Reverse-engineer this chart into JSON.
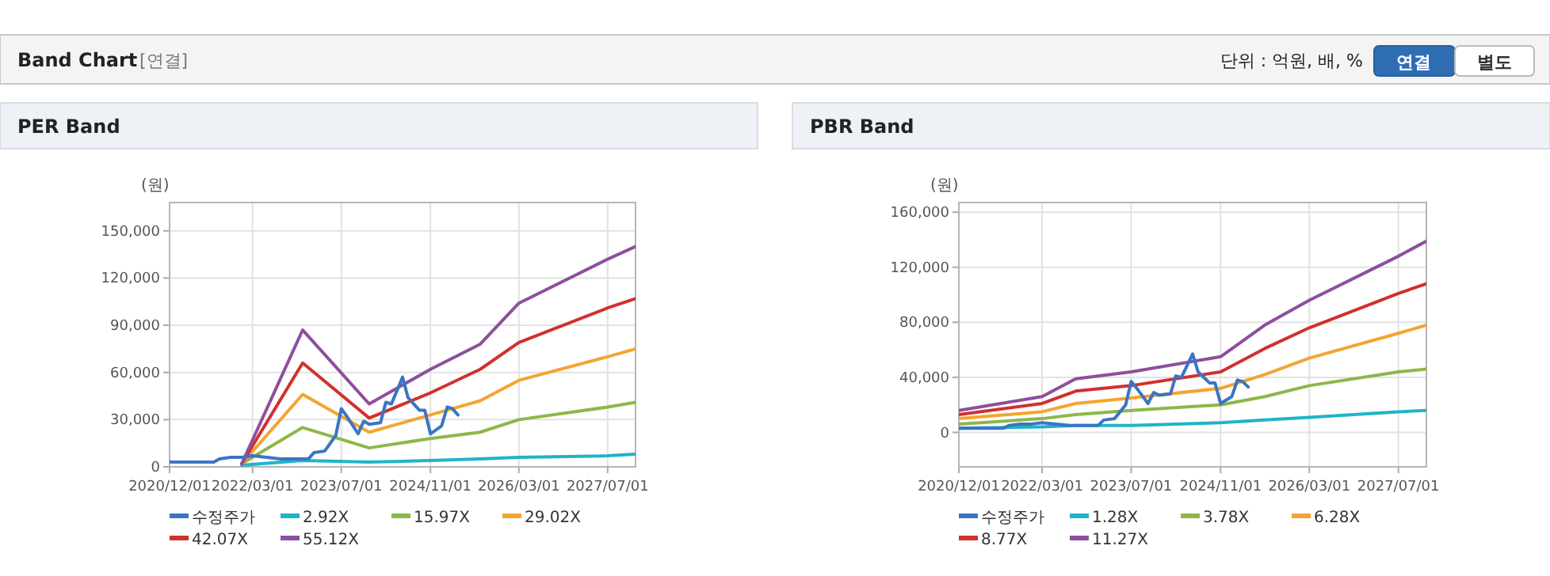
{
  "chart_data": [
    {
      "type": "line",
      "title": "PER Band",
      "ylabel": "(원)",
      "annotations": [
        "Band Chart",
        "[연결]",
        "단위 : 억원, 배, %",
        "연결",
        "별도"
      ],
      "grid": true,
      "legend": "bottom",
      "marker": "none",
      "line_style": "solid",
      "xlim": [
        "2020-12-01",
        "2027-12-01"
      ],
      "xticks": [
        {
          "value": "2020-12-01",
          "label": "2020/12/01"
        },
        {
          "value": "2022-03-01",
          "label": "2022/03/01"
        },
        {
          "value": "2023-07-01",
          "label": "2023/07/01"
        },
        {
          "value": "2024-11-01",
          "label": "2024/11/01"
        },
        {
          "value": "2026-03-01",
          "label": "2026/03/01"
        },
        {
          "value": "2027-07-01",
          "label": "2027/07/01"
        }
      ],
      "ylim": [
        0,
        168000
      ],
      "yticks": [
        0,
        {
          "value": 30000,
          "label": "30,000"
        },
        {
          "value": 60000,
          "label": "60,000"
        },
        {
          "value": 90000,
          "label": "90,000"
        },
        {
          "value": 120000,
          "label": "120,000"
        },
        {
          "value": 150000,
          "label": "150,000"
        }
      ],
      "series": [
        {
          "name": "수정주가",
          "color": "#3a75c4",
          "x": [
            "2020-12",
            "2021-08",
            "2021-09",
            "2021-11",
            "2022-01",
            "2022-03",
            "2022-08",
            "2023-01",
            "2023-02",
            "2023-04",
            "2023-06",
            "2023-07",
            "2023-08",
            "2023-10",
            "2023-11",
            "2023-12",
            "2024-02",
            "2024-03",
            "2024-04",
            "2024-06",
            "2024-07",
            "2024-09",
            "2024-10",
            "2024-11",
            "2025-01",
            "2025-02",
            "2025-03",
            "2025-04"
          ],
          "values": [
            3000,
            3000,
            5000,
            6000,
            6000,
            7000,
            5000,
            5000,
            9000,
            10000,
            20000,
            37000,
            32000,
            21000,
            29000,
            27000,
            28000,
            41000,
            40000,
            57000,
            44000,
            36000,
            36000,
            21000,
            26000,
            38000,
            37000,
            33000
          ]
        },
        {
          "name": "2.92X",
          "color": "#1fb4c8",
          "x": [
            "2022-01",
            "2022-12",
            "2023-12",
            "2024-11",
            "2025-08",
            "2026-03",
            "2027-07",
            "2027-12"
          ],
          "values": [
            1000,
            4000,
            3000,
            4000,
            5000,
            6000,
            7000,
            8000
          ]
        },
        {
          "name": "15.97X",
          "color": "#8db749",
          "x": [
            "2022-01",
            "2022-12",
            "2023-12",
            "2024-11",
            "2025-08",
            "2026-03",
            "2027-07",
            "2027-12"
          ],
          "values": [
            2000,
            25000,
            12000,
            18000,
            22000,
            30000,
            38000,
            41000
          ]
        },
        {
          "name": "29.02X",
          "color": "#f4a431",
          "x": [
            "2022-01",
            "2022-12",
            "2023-12",
            "2024-11",
            "2025-08",
            "2026-03",
            "2027-07",
            "2027-12"
          ],
          "values": [
            2000,
            46000,
            22000,
            33000,
            42000,
            55000,
            70000,
            75000
          ]
        },
        {
          "name": "42.07X",
          "color": "#d0312d",
          "x": [
            "2022-01",
            "2022-12",
            "2023-12",
            "2024-11",
            "2025-08",
            "2026-03",
            "2027-07",
            "2027-12"
          ],
          "values": [
            2000,
            66000,
            31000,
            47000,
            62000,
            79000,
            101000,
            107000
          ]
        },
        {
          "name": "55.12X",
          "color": "#8e4f9c",
          "x": [
            "2022-01",
            "2022-12",
            "2023-12",
            "2024-11",
            "2025-08",
            "2026-03",
            "2027-07",
            "2027-12"
          ],
          "values": [
            2000,
            87000,
            40000,
            62000,
            78000,
            104000,
            132000,
            140000
          ]
        }
      ]
    },
    {
      "type": "line",
      "title": "PBR Band",
      "ylabel": "(원)",
      "grid": true,
      "legend": "bottom",
      "marker": "none",
      "line_style": "solid",
      "xlim": [
        "2020-12-01",
        "2027-12-01"
      ],
      "xticks": [
        {
          "value": "2020-12-01",
          "label": "2020/12/01"
        },
        {
          "value": "2022-03-01",
          "label": "2022/03/01"
        },
        {
          "value": "2023-07-01",
          "label": "2023/07/01"
        },
        {
          "value": "2024-11-01",
          "label": "2024/11/01"
        },
        {
          "value": "2026-03-01",
          "label": "2026/03/01"
        },
        {
          "value": "2027-07-01",
          "label": "2027/07/01"
        }
      ],
      "ylim": [
        -25000,
        167000
      ],
      "yticks": [
        0,
        {
          "value": 40000,
          "label": "40,000"
        },
        {
          "value": 80000,
          "label": "80,000"
        },
        {
          "value": 120000,
          "label": "120,000"
        },
        {
          "value": 160000,
          "label": "160,000"
        }
      ],
      "series": [
        {
          "name": "수정주가",
          "color": "#3a75c4",
          "x": [
            "2020-12",
            "2021-08",
            "2021-09",
            "2021-11",
            "2022-01",
            "2022-03",
            "2022-08",
            "2023-01",
            "2023-02",
            "2023-04",
            "2023-06",
            "2023-07",
            "2023-08",
            "2023-10",
            "2023-11",
            "2023-12",
            "2024-02",
            "2024-03",
            "2024-04",
            "2024-06",
            "2024-07",
            "2024-09",
            "2024-10",
            "2024-11",
            "2025-01",
            "2025-02",
            "2025-03",
            "2025-04"
          ],
          "values": [
            3000,
            3000,
            5000,
            6000,
            6000,
            7000,
            5000,
            5000,
            9000,
            10000,
            20000,
            37000,
            32000,
            21000,
            29000,
            27000,
            28000,
            41000,
            40000,
            57000,
            44000,
            36000,
            36000,
            21000,
            26000,
            38000,
            37000,
            33000
          ]
        },
        {
          "name": "1.28X",
          "color": "#1fb4c8",
          "x": [
            "2020-12",
            "2022-03",
            "2022-09",
            "2023-07",
            "2024-11",
            "2025-07",
            "2026-03",
            "2027-07",
            "2027-12"
          ],
          "values": [
            3000,
            4000,
            5000,
            5000,
            7000,
            9000,
            11000,
            15000,
            16000
          ]
        },
        {
          "name": "3.78X",
          "color": "#8db749",
          "x": [
            "2020-12",
            "2022-03",
            "2022-09",
            "2023-07",
            "2024-11",
            "2025-07",
            "2026-03",
            "2027-07",
            "2027-12"
          ],
          "values": [
            6000,
            10000,
            13000,
            16000,
            20000,
            26000,
            34000,
            44000,
            46000
          ]
        },
        {
          "name": "6.28X",
          "color": "#f4a431",
          "x": [
            "2020-12",
            "2022-03",
            "2022-09",
            "2023-07",
            "2024-11",
            "2025-07",
            "2026-03",
            "2027-07",
            "2027-12"
          ],
          "values": [
            10000,
            15000,
            21000,
            25000,
            32000,
            42000,
            54000,
            72000,
            78000
          ]
        },
        {
          "name": "8.77X",
          "color": "#d0312d",
          "x": [
            "2020-12",
            "2022-03",
            "2022-09",
            "2023-07",
            "2024-11",
            "2025-07",
            "2026-03",
            "2027-07",
            "2027-12"
          ],
          "values": [
            13000,
            21000,
            30000,
            34000,
            44000,
            61000,
            76000,
            101000,
            108000
          ]
        },
        {
          "name": "11.27X",
          "color": "#8e4f9c",
          "x": [
            "2020-12",
            "2022-03",
            "2022-09",
            "2023-07",
            "2024-11",
            "2025-07",
            "2026-03",
            "2027-07",
            "2027-12"
          ],
          "values": [
            16000,
            26000,
            39000,
            44000,
            55000,
            78000,
            96000,
            128000,
            139000
          ]
        }
      ]
    }
  ]
}
